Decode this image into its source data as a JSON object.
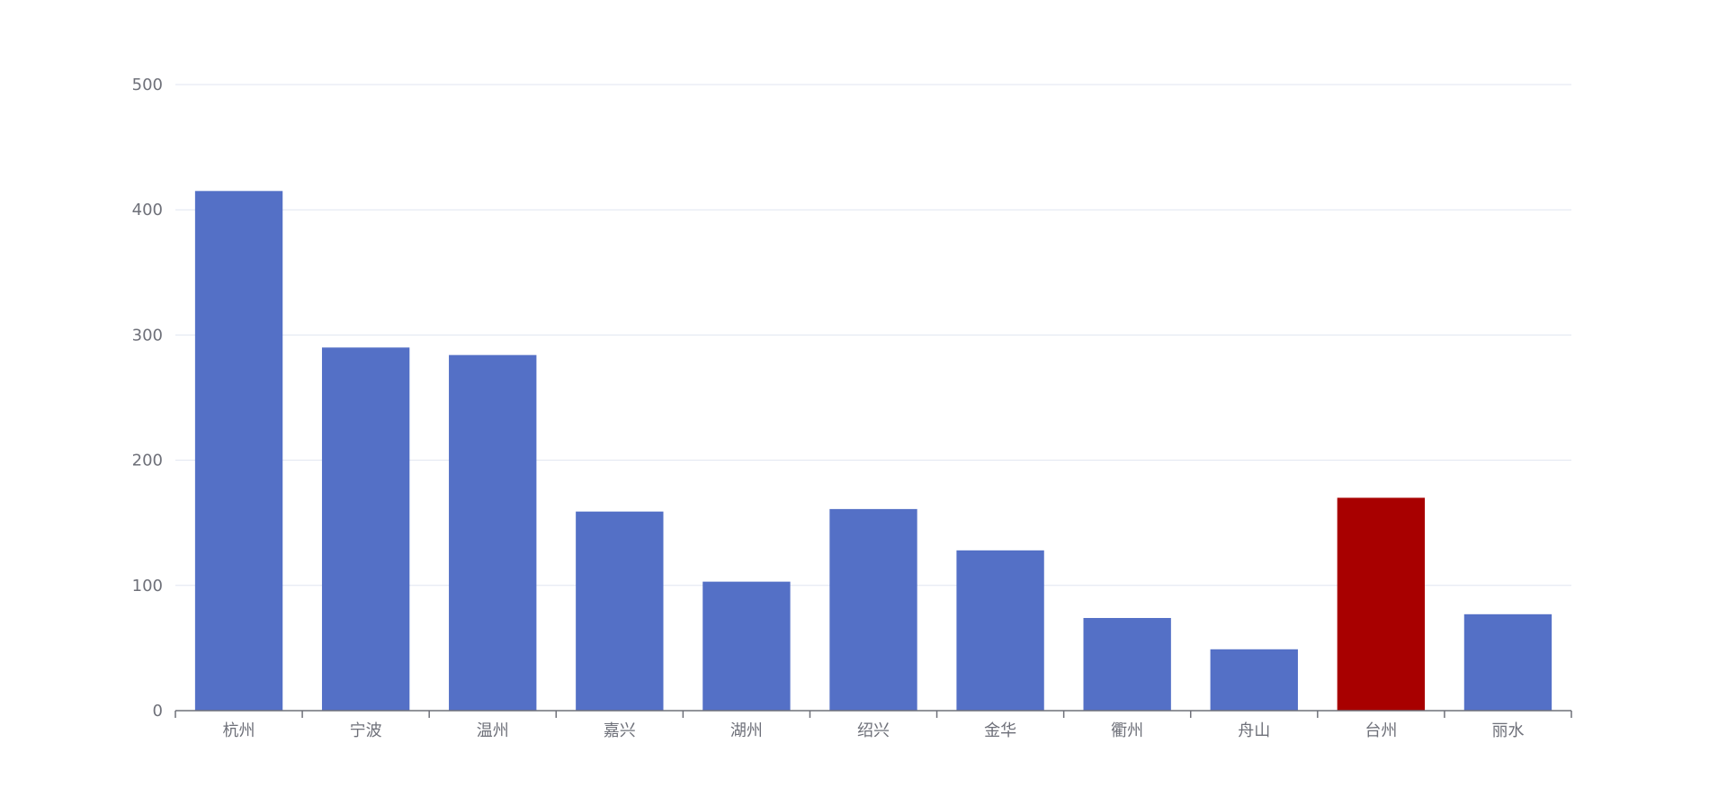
{
  "chart_data": {
    "type": "bar",
    "title": "",
    "xlabel": "",
    "ylabel": "",
    "categories": [
      "杭州",
      "宁波",
      "温州",
      "嘉兴",
      "湖州",
      "绍兴",
      "金华",
      "衢州",
      "舟山",
      "台州",
      "丽水"
    ],
    "values": [
      415,
      290,
      284,
      159,
      103,
      161,
      128,
      74,
      49,
      170,
      77
    ],
    "ylim": [
      0,
      500
    ],
    "yticks": [
      0,
      100,
      200,
      300,
      400,
      500
    ],
    "grid": true,
    "legend": "none",
    "highlight_index": 9,
    "colors": {
      "bar": "#5470c6",
      "highlight": "#a80000",
      "grid": "#e0e6f1",
      "axis": "#6e7079",
      "label": "#6e7079"
    }
  }
}
